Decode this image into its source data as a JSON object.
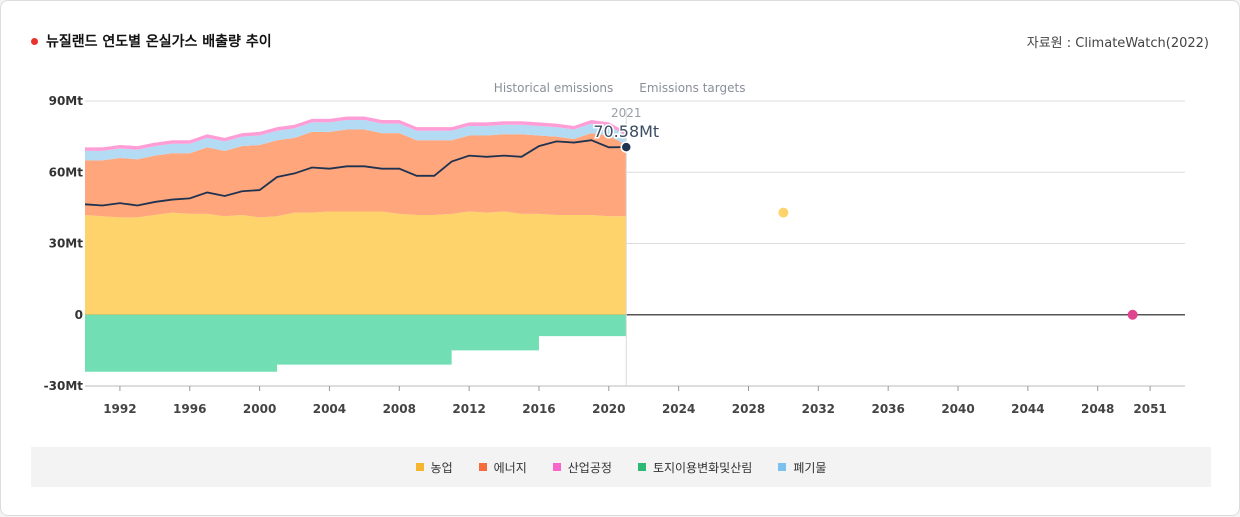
{
  "header": {
    "title": "뉴질랜드 연도별 온실가스 배출량 추이",
    "source": "자료원 : ClimateWatch(2022)"
  },
  "chart_data": {
    "type": "area",
    "title": "뉴질랜드 연도별 온실가스 배출량 추이",
    "phase_labels": {
      "historical": "Historical emissions",
      "targets": "Emissions targets"
    },
    "y_ticks": [
      {
        "value": 90,
        "label": "90Mt"
      },
      {
        "value": 60,
        "label": "60Mt"
      },
      {
        "value": 30,
        "label": "30Mt"
      },
      {
        "value": 0,
        "label": "0"
      },
      {
        "value": -30,
        "label": "-30Mt"
      }
    ],
    "ylim": [
      -30,
      90
    ],
    "xlim": [
      1990,
      2053
    ],
    "x_ticks": [
      1992,
      1996,
      2000,
      2004,
      2008,
      2012,
      2016,
      2020,
      2024,
      2028,
      2032,
      2036,
      2040,
      2044,
      2048,
      2051
    ],
    "years": [
      1990,
      1991,
      1992,
      1993,
      1994,
      1995,
      1996,
      1997,
      1998,
      1999,
      2000,
      2001,
      2002,
      2003,
      2004,
      2005,
      2006,
      2007,
      2008,
      2009,
      2010,
      2011,
      2012,
      2013,
      2014,
      2015,
      2016,
      2017,
      2018,
      2019,
      2020,
      2021
    ],
    "series": [
      {
        "name": "농업",
        "color": "#ffd36b",
        "values": [
          42,
          41.5,
          41,
          41,
          42,
          43,
          42.5,
          42.5,
          41.5,
          42,
          41,
          41.5,
          43,
          43,
          43.5,
          43.5,
          43.5,
          43.5,
          42.5,
          42,
          42,
          42.5,
          43.5,
          43,
          43.5,
          42.5,
          42.5,
          42,
          42,
          42,
          41.5,
          41.5
        ]
      },
      {
        "name": "에너지",
        "color": "#ffa67c",
        "values": [
          23,
          23.5,
          25,
          24.5,
          25,
          25,
          25.5,
          28,
          27.5,
          29,
          30.5,
          32,
          31.5,
          34,
          33.5,
          34.5,
          34.5,
          33,
          34,
          31.5,
          31.5,
          31,
          32,
          32.5,
          32.5,
          33.5,
          33,
          33,
          32,
          34.5,
          34,
          30
        ]
      },
      {
        "name": "산업공정",
        "color": "#ff9ed6",
        "values": [
          1.5,
          1.5,
          1.5,
          1.5,
          1.5,
          1.5,
          1.5,
          1.5,
          1.5,
          1.5,
          1.5,
          1.5,
          1.5,
          1.5,
          1.5,
          1.5,
          1.5,
          1.5,
          1.5,
          1.5,
          1.5,
          1.5,
          1.5,
          1.5,
          1.5,
          1.5,
          1.5,
          1.5,
          1.5,
          1.5,
          1.5,
          1.5
        ]
      },
      {
        "name": "토지이용변화및산림",
        "color": "#72deb4",
        "values": [
          -24,
          -24,
          -24,
          -24,
          -24,
          -24,
          -24,
          -24,
          -24,
          -24,
          -24,
          -21,
          -21,
          -21,
          -21,
          -21,
          -21,
          -21,
          -21,
          -21,
          -21,
          -15,
          -15,
          -15,
          -15,
          -15,
          -9,
          -9,
          -9,
          -9,
          -9,
          -9
        ]
      },
      {
        "name": "폐기물",
        "color": "#b3dcf4",
        "values": [
          4,
          4,
          4,
          4,
          4,
          4,
          4,
          4,
          4,
          4,
          4,
          4,
          4,
          4,
          4,
          4,
          4,
          4,
          4,
          4,
          4,
          4,
          4,
          4,
          4,
          4,
          4,
          4,
          4,
          4,
          4,
          4
        ]
      }
    ],
    "net_line": {
      "name": "net",
      "color": "#1f3350",
      "values": [
        46.5,
        46,
        47,
        46,
        47.5,
        48.5,
        49,
        51.5,
        50,
        52,
        52.5,
        58,
        59.5,
        62,
        61.5,
        62.5,
        62.5,
        61.5,
        61.5,
        58.5,
        58.5,
        64.5,
        67,
        66.5,
        67,
        66.5,
        71,
        73,
        72.5,
        73.5,
        70.5,
        70.58
      ]
    },
    "annotation": {
      "year": 2021,
      "year_label": "2021",
      "value": 70.58,
      "value_label": "70.58Mt"
    },
    "targets": [
      {
        "year": 2030,
        "value": 43,
        "color": "#ffd36b"
      },
      {
        "year": 2050,
        "value": 0,
        "color": "#e0448f"
      }
    ]
  },
  "legend": [
    {
      "label": "농업",
      "color": "#f6b531"
    },
    {
      "label": "에너지",
      "color": "#f56d3c"
    },
    {
      "label": "산업공정",
      "color": "#f767c9"
    },
    {
      "label": "토지이용변화및산림",
      "color": "#2eb873"
    },
    {
      "label": "폐기물",
      "color": "#7cc0ef"
    }
  ]
}
